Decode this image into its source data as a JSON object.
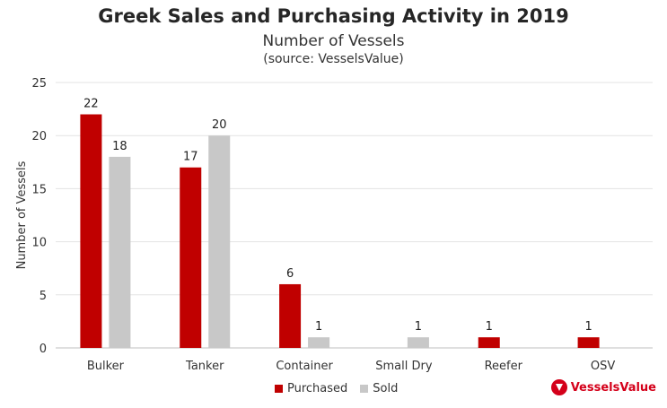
{
  "chart_data": {
    "type": "bar",
    "title": "Greek Sales and Purchasing Activity in 2019",
    "subtitle": "Number of Vessels",
    "source_note": "(source: VesselsValue)",
    "ylabel": "Number of Vessels",
    "xlabel": "",
    "ylim": [
      0,
      25
    ],
    "yticks": [
      0,
      5,
      10,
      15,
      20,
      25
    ],
    "grid": true,
    "legend_position": "bottom",
    "categories": [
      "Bulker",
      "Tanker",
      "Container",
      "Small Dry",
      "Reefer",
      "OSV"
    ],
    "series": [
      {
        "name": "Purchased",
        "color": "#c00000",
        "values": [
          22,
          17,
          6,
          0,
          1,
          1
        ]
      },
      {
        "name": "Sold",
        "color": "#c8c8c8",
        "values": [
          18,
          20,
          1,
          1,
          0,
          0
        ]
      }
    ]
  },
  "branding": {
    "logo_text": "VesselsValue",
    "logo_color": "#d4001a"
  }
}
